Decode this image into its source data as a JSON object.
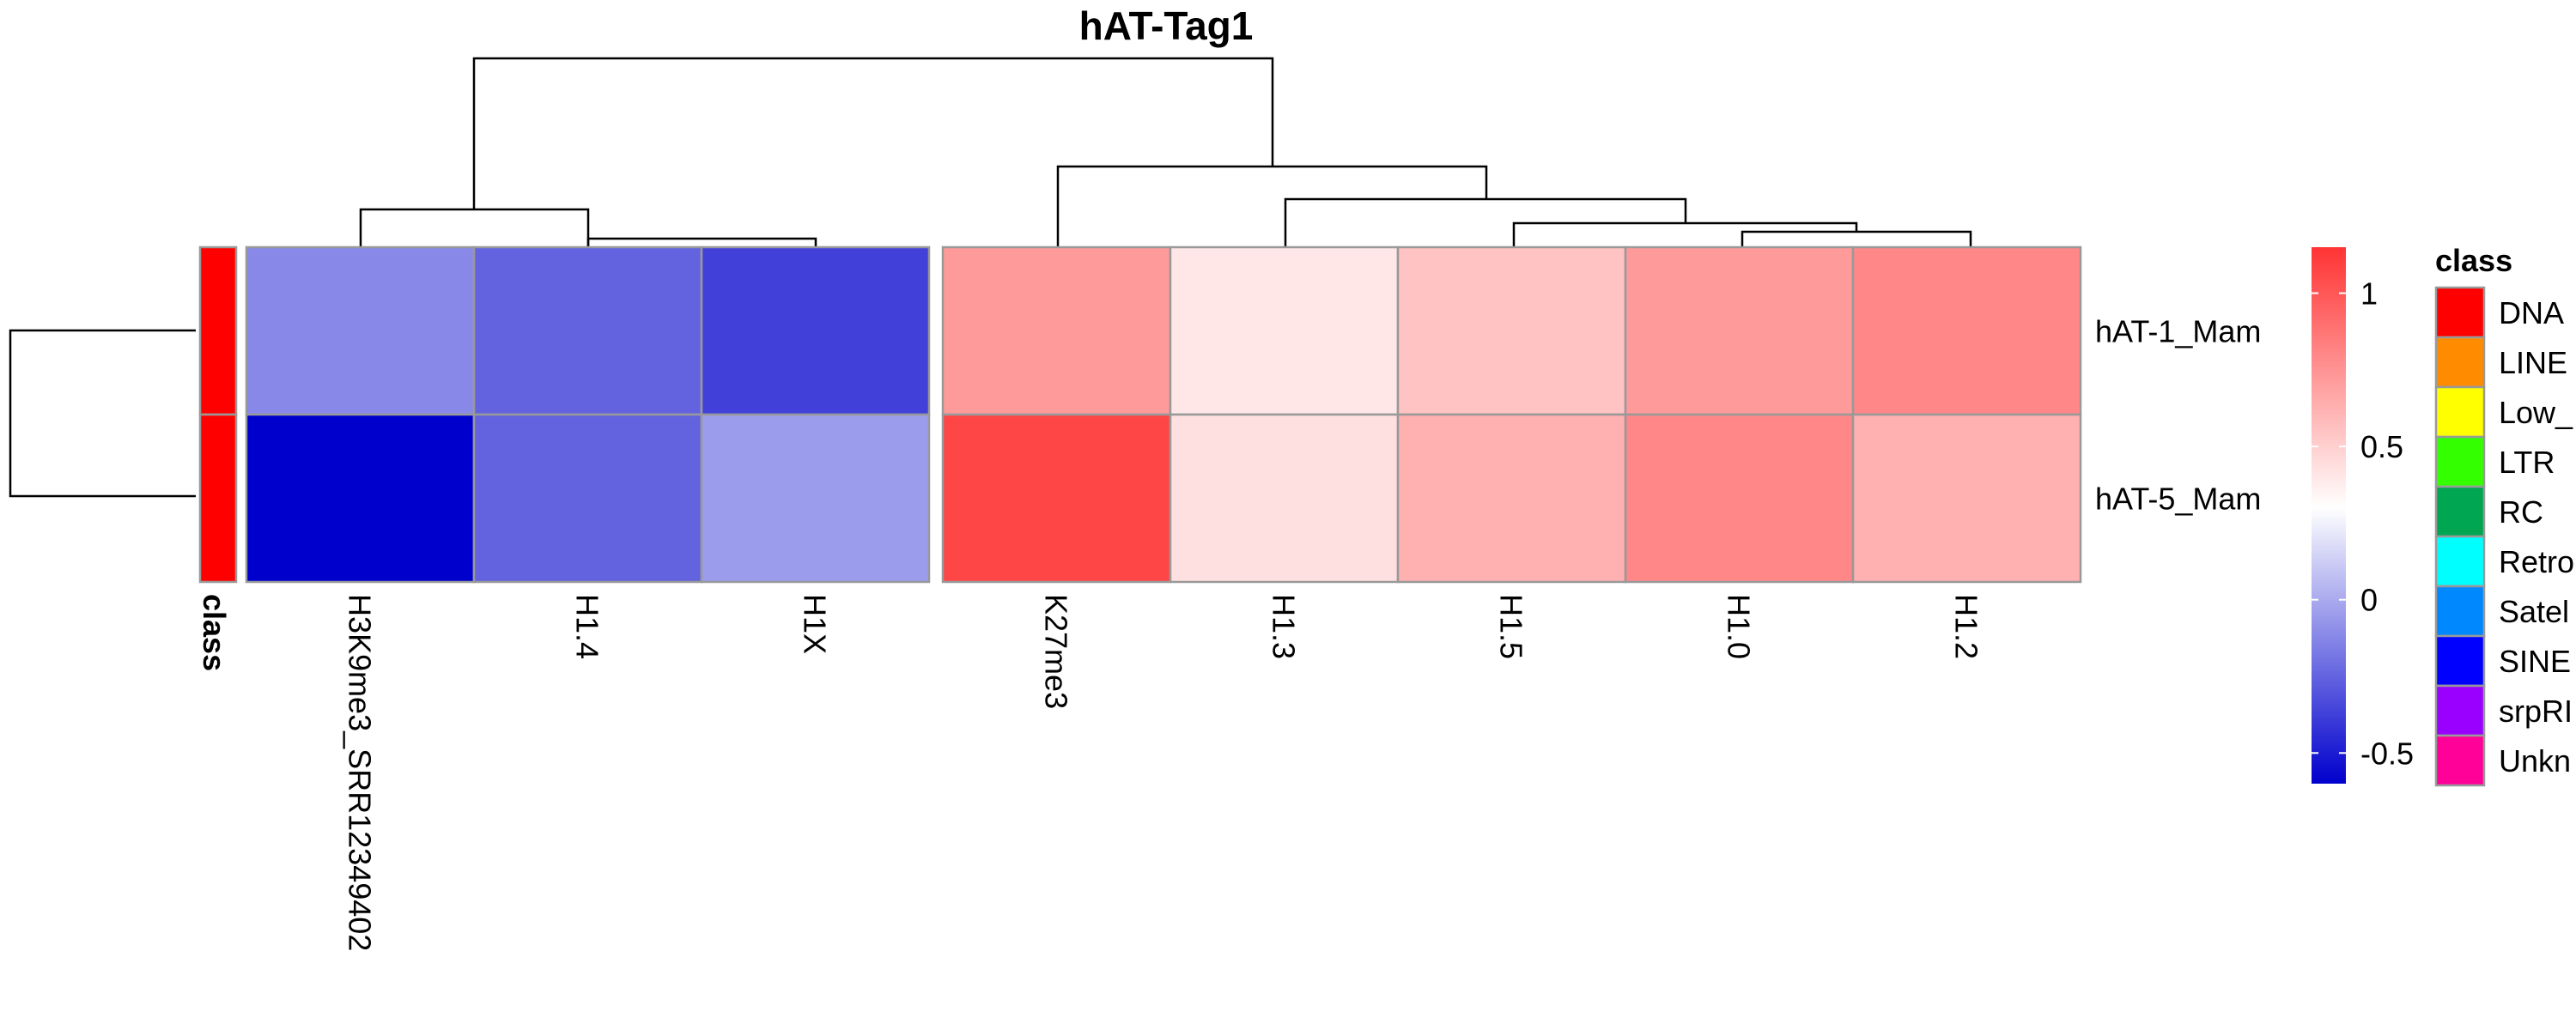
{
  "chart_data": {
    "type": "heatmap",
    "title": "hAT-Tag1",
    "rows": [
      "hAT-1_Mam",
      "hAT-5_Mam"
    ],
    "columns": [
      "H3K9me3_SRR12349402",
      "H1.4",
      "H1X",
      "K27me3",
      "H1.3",
      "H1.5",
      "H1.0",
      "H1.2"
    ],
    "values": [
      [
        -0.12,
        -0.25,
        -0.37,
        0.72,
        0.4,
        0.55,
        0.72,
        0.8
      ],
      [
        -0.6,
        -0.25,
        -0.05,
        1.07,
        0.43,
        0.63,
        0.8,
        0.63
      ]
    ],
    "row_annotation": {
      "label": "class",
      "values": [
        "DNA",
        "DNA"
      ]
    },
    "color_scale": {
      "min": -0.6,
      "mid": 0.3,
      "max": 1.15,
      "low_color": "#0000CD",
      "mid_color": "#FFFFFF",
      "high_color": "#FF3333",
      "ticks": [
        -0.5,
        0,
        0.5,
        1
      ]
    },
    "tick_labels": [
      "-0.5",
      "0",
      "0.5",
      "1"
    ],
    "legend": {
      "title": "class",
      "entries": [
        {
          "label": "DNA",
          "color": "#FF0000"
        },
        {
          "label": "LINE",
          "color": "#FF8C00"
        },
        {
          "label": "Low_",
          "color": "#FFFF00"
        },
        {
          "label": "LTR",
          "color": "#33FF00"
        },
        {
          "label": "RC",
          "color": "#00A651"
        },
        {
          "label": "Retro",
          "color": "#00FFFF"
        },
        {
          "label": "Satel",
          "color": "#0088FF"
        },
        {
          "label": "SINE",
          "color": "#0000FF"
        },
        {
          "label": "srpRI",
          "color": "#9900FF"
        },
        {
          "label": "Unkn",
          "color": "#FF0099"
        }
      ]
    },
    "grid": true
  }
}
